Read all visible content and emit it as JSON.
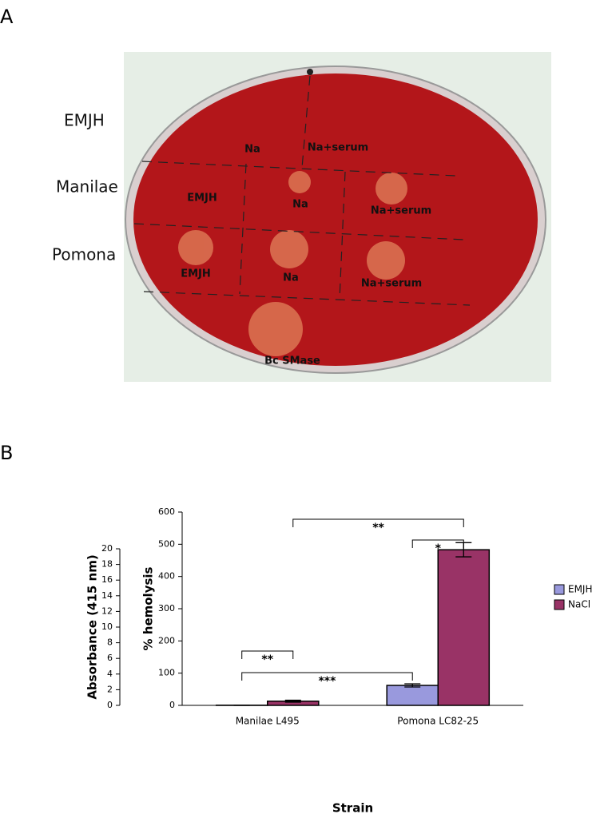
{
  "panel_labels": [
    "A",
    "B"
  ],
  "plate": {
    "row_labels": [
      "EMJH",
      "Manilae",
      "Pomona"
    ],
    "well_labels": [
      "Na",
      "Na+serum",
      "EMJH",
      "Na",
      "Na+serum",
      "EMJH",
      "Na",
      "Na+serum",
      "Bc SMase"
    ]
  },
  "chart_data": {
    "type": "bar",
    "xlabel": "Strain",
    "ylabel": "% hemolysis",
    "y2label": "Absorbance (415 nm)",
    "categories": [
      "Manilae L495",
      "Pomona LC82-25"
    ],
    "series": [
      {
        "name": "EMJH",
        "color": "#9999dd",
        "values": [
          0.5,
          62
        ],
        "errors": [
          0.3,
          5
        ]
      },
      {
        "name": "NaCl",
        "color": "#993366",
        "values": [
          13,
          483
        ],
        "errors": [
          3,
          22
        ]
      }
    ],
    "ylim": [
      0,
      600
    ],
    "yticks": [
      0,
      100,
      200,
      300,
      400,
      500,
      600
    ],
    "y2lim": [
      0,
      20
    ],
    "y2ticks": [
      0,
      2,
      4,
      6,
      8,
      10,
      12,
      14,
      16,
      18,
      20
    ],
    "annotations": [
      "**",
      "*",
      "***",
      "**"
    ],
    "legend": "right"
  }
}
